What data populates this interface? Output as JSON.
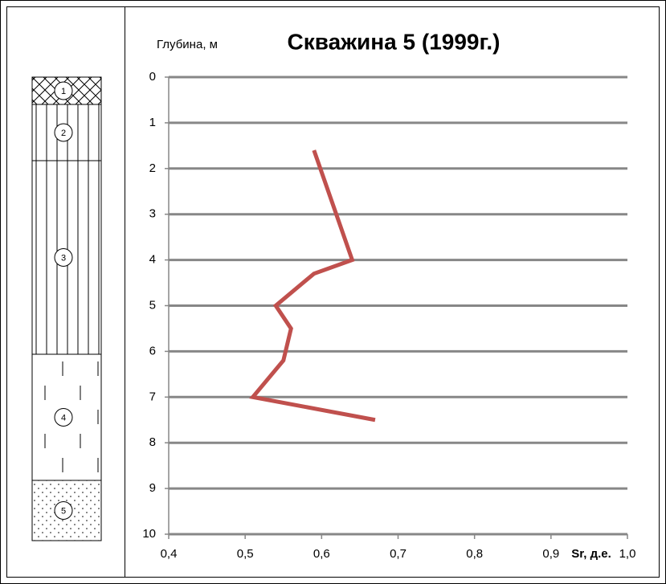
{
  "chart_data": {
    "type": "line",
    "title": "Скважина 5 (1999г.)",
    "y_label": "Глубина, м",
    "x_label": "Sr, д.е.",
    "x": [
      0.59,
      0.64,
      0.59,
      0.54,
      0.56,
      0.55,
      0.51,
      0.67
    ],
    "series": [
      {
        "color": "#c0504d",
        "values": [
          1.6,
          4.0,
          4.3,
          5.0,
          5.5,
          6.2,
          7.0,
          7.5
        ]
      }
    ],
    "xlim": [
      0.4,
      1.0
    ],
    "xticks": [
      {
        "value": 0.4,
        "label": "0,4"
      },
      {
        "value": 0.5,
        "label": "0,5"
      },
      {
        "value": 0.6,
        "label": "0,6"
      },
      {
        "value": 0.7,
        "label": "0,7"
      },
      {
        "value": 0.8,
        "label": "0,8"
      },
      {
        "value": 0.9,
        "label": "0,9"
      },
      {
        "value": 1.0,
        "label": "1,0"
      }
    ],
    "ylim": [
      0,
      10
    ],
    "y_inverted": true,
    "yticks": [
      0,
      1,
      2,
      3,
      4,
      5,
      6,
      7,
      8,
      9,
      10
    ],
    "grid": true
  },
  "lithology_column": {
    "layers": [
      "1",
      "2",
      "3",
      "4",
      "5"
    ]
  }
}
